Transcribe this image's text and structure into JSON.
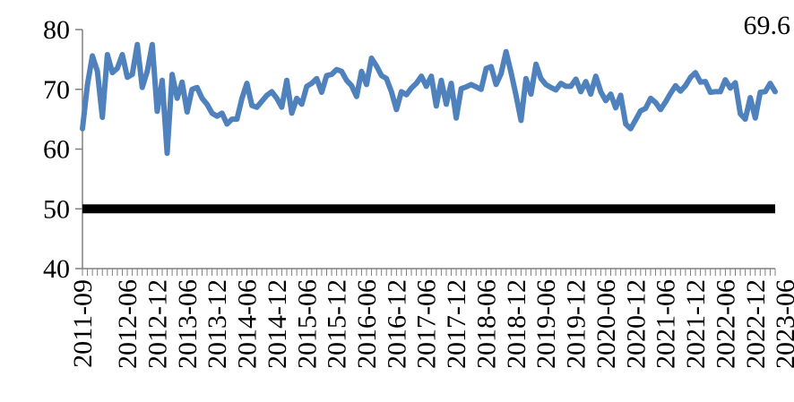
{
  "chart_data": {
    "type": "line",
    "title": "",
    "xlabel": "",
    "ylabel": "",
    "ylim": [
      40,
      80
    ],
    "yticks": [
      40,
      50,
      60,
      70,
      80
    ],
    "x_tick_labels": [
      "2011-09",
      "2012-06",
      "2012-12",
      "2013-06",
      "2013-12",
      "2014-06",
      "2014-12",
      "2015-06",
      "2015-12",
      "2016-06",
      "2016-12",
      "2017-06",
      "2017-12",
      "2018-06",
      "2018-12",
      "2019-06",
      "2019-12",
      "2020-06",
      "2020-12",
      "2021-06",
      "2021-12",
      "2022-06",
      "2022-12",
      "2023-06"
    ],
    "data_label": "69.6",
    "grid": false,
    "legend": "none",
    "series": [
      {
        "color": "#4F81BD",
        "start": "2011-09",
        "frequency": "monthly",
        "values": [
          63.4,
          70.8,
          75.6,
          73.0,
          65.3,
          75.8,
          72.8,
          73.5,
          75.8,
          72.0,
          72.5,
          77.5,
          70.3,
          73.0,
          77.5,
          66.3,
          71.5,
          59.3,
          72.5,
          68.5,
          71.2,
          66.2,
          70.0,
          70.3,
          68.5,
          67.5,
          66.0,
          65.5,
          66.0,
          64.2,
          65.0,
          65.0,
          68.5,
          71.0,
          67.3,
          67.0,
          68.0,
          69.0,
          69.6,
          68.5,
          67.0,
          71.5,
          66.0,
          68.5,
          67.5,
          70.5,
          71.0,
          71.8,
          69.5,
          72.3,
          72.5,
          73.3,
          73.0,
          71.5,
          70.6,
          68.8,
          73.0,
          70.8,
          75.2,
          73.9,
          72.3,
          71.8,
          69.6,
          66.6,
          69.6,
          69.1,
          70.2,
          71.0,
          72.2,
          70.5,
          72.2,
          67.2,
          71.5,
          67.5,
          71.0,
          65.2,
          70.1,
          70.4,
          70.8,
          70.4,
          70.0,
          73.5,
          73.8,
          70.8,
          72.6,
          76.3,
          72.8,
          69.0,
          64.8,
          71.8,
          69.2,
          74.2,
          71.8,
          70.8,
          70.3,
          69.9,
          71.0,
          70.5,
          70.5,
          71.7,
          69.6,
          71.3,
          69.2,
          72.2,
          69.6,
          68.1,
          69.2,
          66.9,
          69.0,
          64.2,
          63.4,
          64.9,
          66.4,
          66.8,
          68.5,
          67.8,
          66.6,
          67.9,
          69.3,
          70.6,
          69.7,
          70.6,
          72.0,
          72.8,
          71.2,
          71.3,
          69.5,
          69.6,
          69.6,
          71.6,
          70.2,
          71.1,
          65.9,
          65.0,
          68.6,
          65.2,
          69.5,
          69.6,
          71.0,
          69.6
        ]
      },
      {
        "color": "#000000",
        "name": "",
        "values": [
          50,
          50
        ]
      }
    ]
  }
}
